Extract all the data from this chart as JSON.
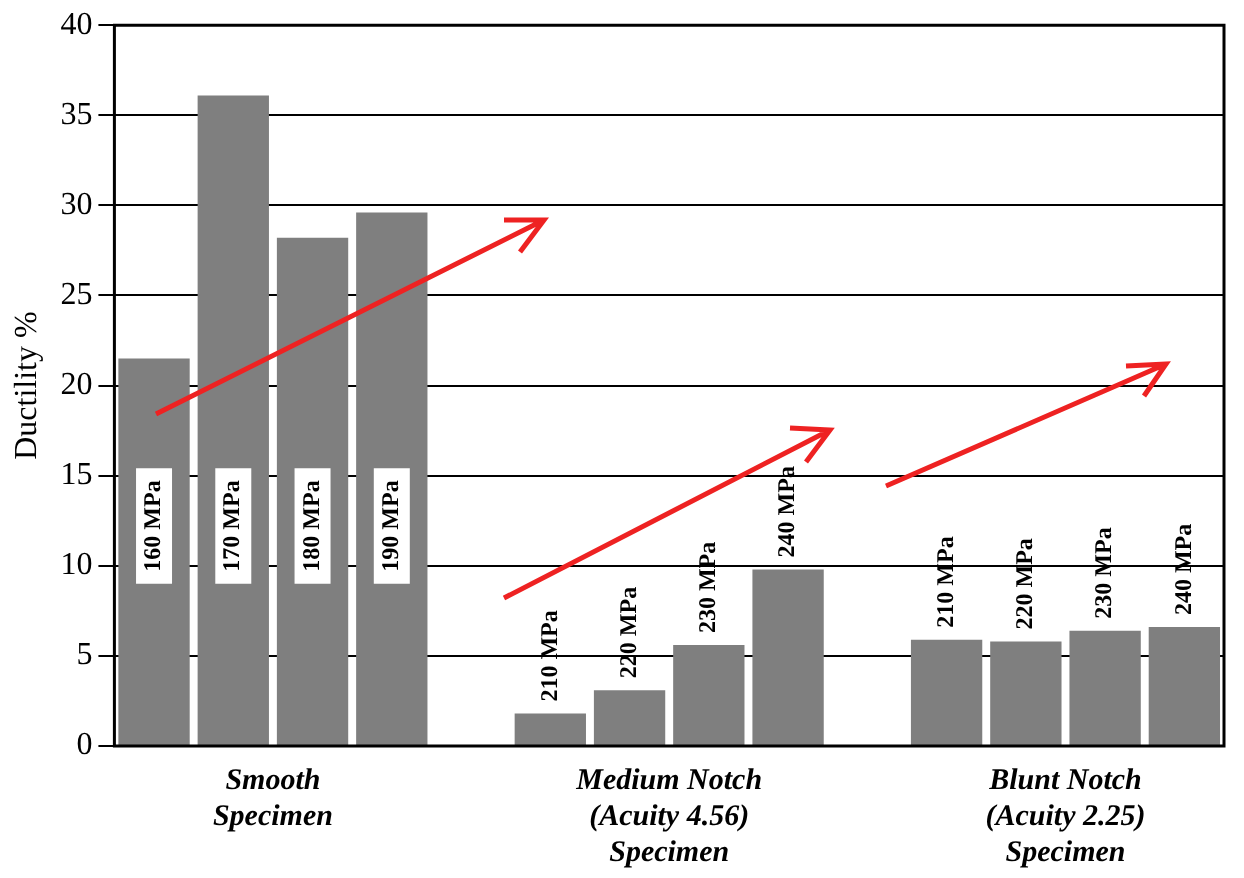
{
  "chart_data": {
    "type": "bar",
    "ylabel": "Ductility %",
    "categories": [
      "160 MPa",
      "170 MPa",
      "180 MPa",
      "190 MPa",
      null,
      "210 MPa",
      "220 MPa",
      "230 MPa",
      "240 MPa",
      null,
      "210 MPa",
      "220 MPa",
      "230 MPa",
      "240 MPa"
    ],
    "values": [
      21.5,
      36.1,
      28.2,
      29.6,
      null,
      1.8,
      3.1,
      5.6,
      9.8,
      null,
      5.9,
      5.8,
      6.4,
      6.6
    ],
    "color": "#7f7f7f",
    "annotations": [
      "Smooth\nSpecimen",
      "Medium Notch\n(Acuity 4.56)\nSpecimen",
      "Blunt Notch\n(Acuity 2.25)\nSpecimen"
    ],
    "ylim": [
      0,
      40
    ],
    "yticks": [
      0,
      5,
      10,
      15,
      20,
      25,
      30,
      35,
      40
    ],
    "grid": "y",
    "legend": false
  }
}
